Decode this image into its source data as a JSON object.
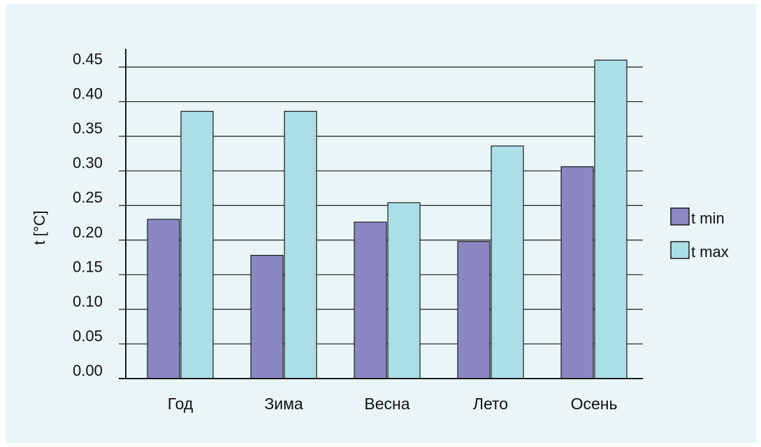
{
  "chart_data": {
    "type": "bar",
    "title": "",
    "xlabel": "",
    "ylabel": "t [°C]",
    "ylim": [
      0,
      0.45
    ],
    "yticks": [
      "0.00",
      "0.05",
      "0.10",
      "0.15",
      "0.20",
      "0.25",
      "0.30",
      "0.35",
      "0.40",
      "0.45"
    ],
    "categories": [
      "Год",
      "Зима",
      "Весна",
      "Лето",
      "Осень"
    ],
    "series": [
      {
        "name": "t min",
        "values": [
          0.23,
          0.178,
          0.226,
          0.198,
          0.306
        ],
        "color": "#8a87c2"
      },
      {
        "name": "t max",
        "values": [
          0.386,
          0.386,
          0.254,
          0.336,
          0.46
        ],
        "color": "#abdfe6"
      }
    ],
    "grid": true,
    "legend_position": "right",
    "colors": {
      "background": "#e9f5f6",
      "gridline": "#1a1a1a",
      "bar_outline": "#1a1a1a"
    }
  }
}
